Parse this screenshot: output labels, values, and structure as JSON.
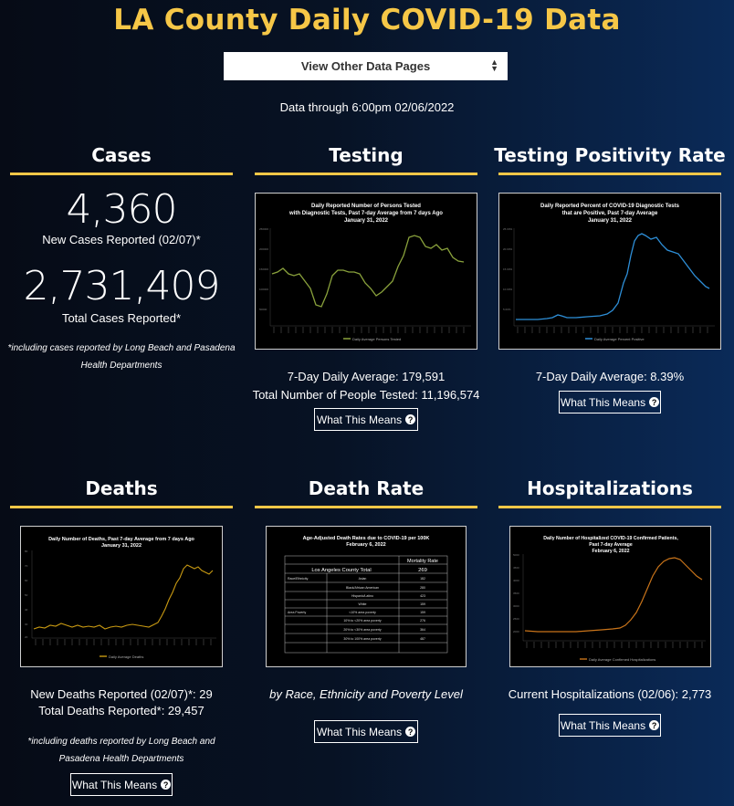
{
  "page_title": "LA County Daily COVID-19 Data",
  "nav_select": {
    "value": "View Other Data Pages"
  },
  "data_through": "Data through 6:00pm 02/06/2022",
  "what_this_means": "What This Means",
  "cases": {
    "title": "Cases",
    "new_cases": "4,360",
    "new_cases_label": "New Cases Reported (02/07)*",
    "total_cases": "2,731,409",
    "total_cases_label": "Total Cases Reported*",
    "note_line1": "*including cases reported by Long Beach and Pasadena",
    "note_line2": "Health Departments"
  },
  "testing": {
    "title": "Testing",
    "chart_title_1": "Daily Reported Number of Persons Tested",
    "chart_title_2": "with Diagnostic Tests, Past 7-day Average from 7 days Ago",
    "chart_title_3": "January 31, 2022",
    "legend": "Daily Average Persons Tested",
    "avg": "7-Day Daily Average: 179,591",
    "total": "Total Number of People Tested: 11,196,574"
  },
  "positivity": {
    "title": "Testing Positivity Rate",
    "chart_title_1": "Daily Reported Percent of COVID-19 Diagnostic Tests",
    "chart_title_2": "that are Positive, Past 7-day Average",
    "chart_title_3": "January 31, 2022",
    "legend": "Daily Average Percent Positive",
    "avg": "7-Day Daily Average: 8.39%"
  },
  "deaths": {
    "title": "Deaths",
    "chart_title_1": "Daily Number of Deaths, Past 7-day Average from 7 days Ago",
    "chart_title_2": "January 31, 2022",
    "legend": "Daily Average Deaths",
    "new_deaths": "New Deaths Reported (02/07)*: 29",
    "total_deaths": "Total Deaths Reported*: 29,457",
    "note_line1": "*including deaths reported by Long Beach and",
    "note_line2": "Pasadena Health Departments"
  },
  "death_rate": {
    "title": "Death Rate",
    "table_title_1": "Age-Adjusted Death Rates due to COVID-19 per 100K",
    "table_title_2": "February 6, 2022",
    "col_header": "Mortality Rate",
    "total_label": "Los Angeles County Total",
    "total_value": "269",
    "group1": "Race/Ethnicity",
    "group2": "Area Poverty",
    "rows": [
      {
        "label": "Asian",
        "value": "182"
      },
      {
        "label": "Black/African American",
        "value": "280"
      },
      {
        "label": "Hispanic/Latino",
        "value": "423"
      },
      {
        "label": "White",
        "value": "159"
      },
      {
        "label": "<10% area poverty",
        "value": "159"
      },
      {
        "label": "10% to <20% area poverty",
        "value": "276"
      },
      {
        "label": "20% to <30% area poverty",
        "value": "364"
      },
      {
        "label": "30% to 100% area poverty",
        "value": "487"
      }
    ],
    "caption": "by Race, Ethnicity and Poverty Level"
  },
  "hospitalizations": {
    "title": "Hospitalizations",
    "chart_title_1": "Daily Number of Hospitalized COVID-19 Confirmed Patients,",
    "chart_title_2": "Past 7-day Average",
    "chart_title_3": "February 6, 2022",
    "legend": "Daily Average Confirmed Hospitalizations",
    "current": "Current Hospitalizations (02/06): 2,773"
  },
  "colors": {
    "accent": "#f6c747",
    "testing_line": "#8aa23c",
    "positivity_line": "#2e8fd8",
    "deaths_line": "#c99a12",
    "hosp_line": "#c9741a"
  }
}
